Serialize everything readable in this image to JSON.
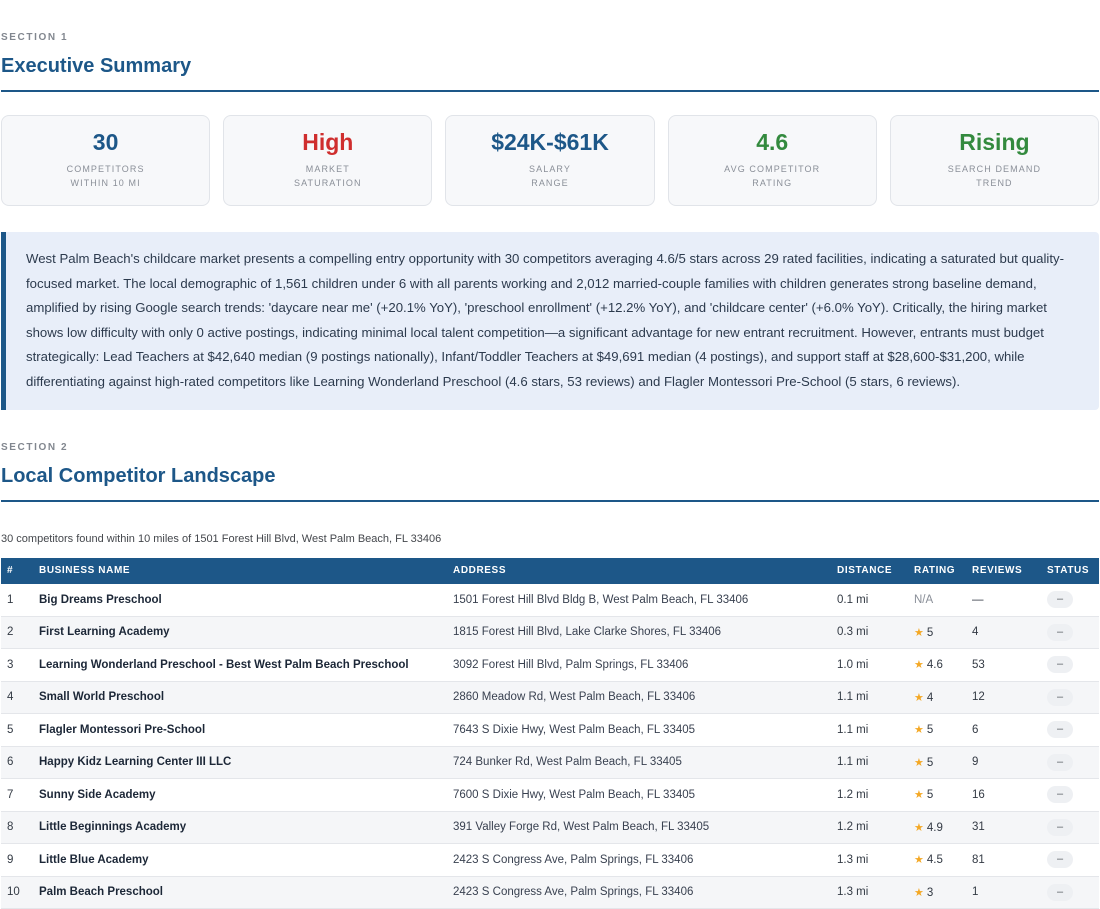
{
  "section1": {
    "label": "SECTION 1",
    "title": "Executive Summary"
  },
  "stats": [
    {
      "value": "30",
      "label_line1": "COMPETITORS",
      "label_line2": "WITHIN 10 MI",
      "color": "#1d5788"
    },
    {
      "value": "High",
      "label_line1": "MARKET",
      "label_line2": "SATURATION",
      "color": "#cf2e2e"
    },
    {
      "value": "$24K-$61K",
      "label_line1": "SALARY",
      "label_line2": "RANGE",
      "color": "#1d5788"
    },
    {
      "value": "4.6",
      "label_line1": "AVG COMPETITOR",
      "label_line2": "RATING",
      "color": "#338a3e"
    },
    {
      "value": "Rising",
      "label_line1": "SEARCH DEMAND",
      "label_line2": "TREND",
      "color": "#338a3e"
    }
  ],
  "summary_text": "West Palm Beach's childcare market presents a compelling entry opportunity with 30 competitors averaging 4.6/5 stars across 29 rated facilities, indicating a saturated but quality-focused market. The local demographic of 1,561 children under 6 with all parents working and 2,012 married-couple families with children generates strong baseline demand, amplified by rising Google search trends: 'daycare near me' (+20.1% YoY), 'preschool enrollment' (+12.2% YoY), and 'childcare center' (+6.0% YoY). Critically, the hiring market shows low difficulty with only 0 active postings, indicating minimal local talent competition—a significant advantage for new entrant recruitment. However, entrants must budget strategically: Lead Teachers at $42,640 median (9 postings nationally), Infant/Toddler Teachers at $49,691 median (4 postings), and support staff at $28,600-$31,200, while differentiating against high-rated competitors like Learning Wonderland Preschool (4.6 stars, 53 reviews) and Flagler Montessori Pre-School (5 stars, 6 reviews).",
  "section2": {
    "label": "SECTION 2",
    "title": "Local Competitor Landscape",
    "note": "30 competitors found within 10 miles of 1501 Forest Hill Blvd, West Palm Beach, FL 33406"
  },
  "table": {
    "headers": [
      "#",
      "BUSINESS NAME",
      "ADDRESS",
      "DISTANCE",
      "RATING",
      "REVIEWS",
      "STATUS"
    ],
    "star_icon": "star-icon",
    "star_color": "#f4a825",
    "rows": [
      {
        "num": "1",
        "name": "Big Dreams Preschool",
        "address": "1501 Forest Hill Blvd Bldg B, West Palm Beach, FL 33406",
        "distance": "0.1 mi",
        "rating": "N/A",
        "has_star": false,
        "reviews": "—",
        "status": "–"
      },
      {
        "num": "2",
        "name": "First Learning Academy",
        "address": "1815 Forest Hill Blvd, Lake Clarke Shores, FL 33406",
        "distance": "0.3 mi",
        "rating": "5",
        "has_star": true,
        "reviews": "4",
        "status": "–"
      },
      {
        "num": "3",
        "name": "Learning Wonderland Preschool - Best West Palm Beach Preschool",
        "address": "3092 Forest Hill Blvd, Palm Springs, FL 33406",
        "distance": "1.0 mi",
        "rating": "4.6",
        "has_star": true,
        "reviews": "53",
        "status": "–"
      },
      {
        "num": "4",
        "name": "Small World Preschool",
        "address": "2860 Meadow Rd, West Palm Beach, FL 33406",
        "distance": "1.1 mi",
        "rating": "4",
        "has_star": true,
        "reviews": "12",
        "status": "–"
      },
      {
        "num": "5",
        "name": "Flagler Montessori Pre-School",
        "address": "7643 S Dixie Hwy, West Palm Beach, FL 33405",
        "distance": "1.1 mi",
        "rating": "5",
        "has_star": true,
        "reviews": "6",
        "status": "–"
      },
      {
        "num": "6",
        "name": "Happy Kidz Learning Center III LLC",
        "address": "724 Bunker Rd, West Palm Beach, FL 33405",
        "distance": "1.1 mi",
        "rating": "5",
        "has_star": true,
        "reviews": "9",
        "status": "–"
      },
      {
        "num": "7",
        "name": "Sunny Side Academy",
        "address": "7600 S Dixie Hwy, West Palm Beach, FL 33405",
        "distance": "1.2 mi",
        "rating": "5",
        "has_star": true,
        "reviews": "16",
        "status": "–"
      },
      {
        "num": "8",
        "name": "Little Beginnings Academy",
        "address": "391 Valley Forge Rd, West Palm Beach, FL 33405",
        "distance": "1.2 mi",
        "rating": "4.9",
        "has_star": true,
        "reviews": "31",
        "status": "–"
      },
      {
        "num": "9",
        "name": "Little Blue Academy",
        "address": "2423 S Congress Ave, Palm Springs, FL 33406",
        "distance": "1.3 mi",
        "rating": "4.5",
        "has_star": true,
        "reviews": "81",
        "status": "–"
      },
      {
        "num": "10",
        "name": "Palm Beach Preschool",
        "address": "2423 S Congress Ave, Palm Springs, FL 33406",
        "distance": "1.3 mi",
        "rating": "3",
        "has_star": true,
        "reviews": "1",
        "status": "–"
      }
    ]
  }
}
